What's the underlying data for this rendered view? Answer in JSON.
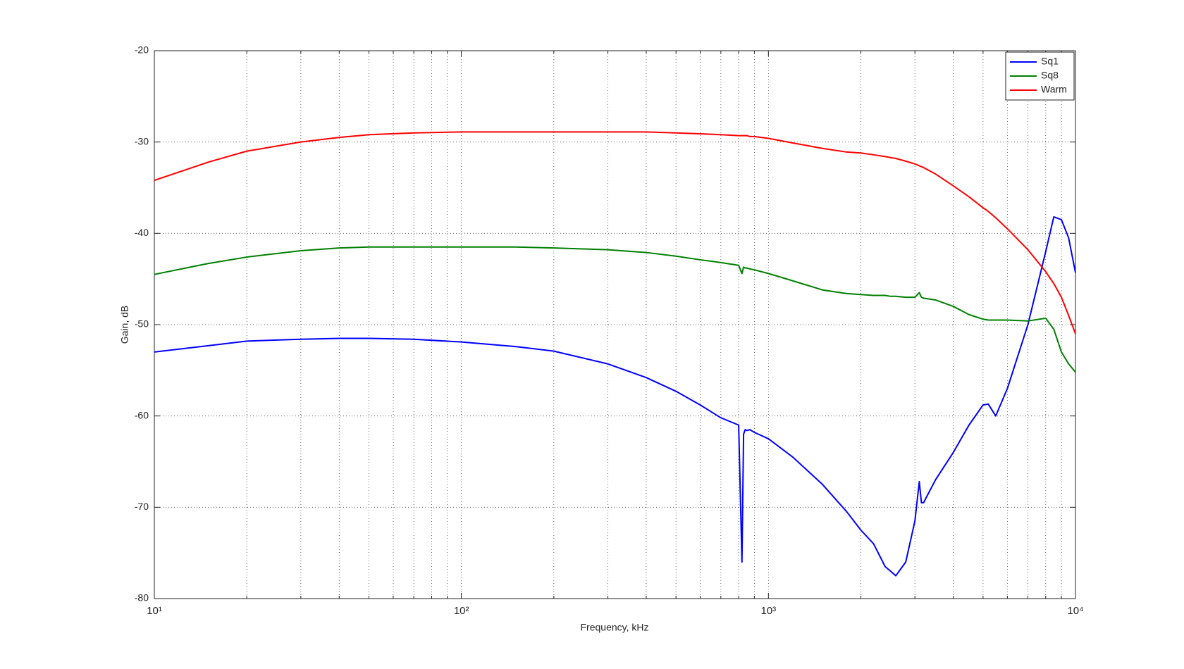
{
  "chart_data": {
    "type": "line",
    "x_label": "Frequency, kHz",
    "y_label": "Gain, dB",
    "x": [
      10,
      15,
      20,
      30,
      40,
      50,
      70,
      100,
      150,
      200,
      300,
      400,
      500,
      600,
      700,
      800,
      820,
      830,
      840,
      850,
      870,
      900,
      1000,
      1200,
      1500,
      1800,
      2000,
      2200,
      2400,
      2500,
      2600,
      2800,
      3000,
      3100,
      3150,
      3200,
      3500,
      4000,
      4500,
      5000,
      5200,
      5500,
      6000,
      7000,
      8000,
      8500,
      9000,
      9500,
      10000
    ],
    "series": [
      {
        "name": "Sq1",
        "color": "#0000ff",
        "values": [
          -53,
          -52.3,
          -51.8,
          -51.6,
          -51.5,
          -51.5,
          -51.6,
          -51.9,
          -52.4,
          -52.9,
          -54.3,
          -55.8,
          -57.3,
          -58.8,
          -60.2,
          -61,
          -76,
          -62,
          -61.5,
          -61.6,
          -61.5,
          -61.8,
          -62.5,
          -64.5,
          -67.5,
          -70.5,
          -72.5,
          -74,
          -76.5,
          -77,
          -77.5,
          -76,
          -71.5,
          -67.2,
          -69.5,
          -69.5,
          -67,
          -64,
          -61,
          -58.8,
          -58.7,
          -60,
          -57,
          -50,
          -42,
          -38.2,
          -38.5,
          -40.5,
          -44.3
        ]
      },
      {
        "name": "Sq8",
        "color": "#008000",
        "values": [
          -44.5,
          -43.3,
          -42.6,
          -41.9,
          -41.6,
          -41.5,
          -41.5,
          -41.5,
          -41.5,
          -41.6,
          -41.8,
          -42.1,
          -42.5,
          -42.9,
          -43.2,
          -43.5,
          -44.4,
          -43.7,
          -43.8,
          -43.8,
          -43.9,
          -44,
          -44.4,
          -45.2,
          -46.2,
          -46.6,
          -46.7,
          -46.8,
          -46.8,
          -46.9,
          -46.9,
          -47,
          -47,
          -46.5,
          -47,
          -47.1,
          -47.3,
          -48,
          -48.9,
          -49.4,
          -49.5,
          -49.5,
          -49.5,
          -49.6,
          -49.3,
          -50.5,
          -53,
          -54.3,
          -55.2
        ]
      },
      {
        "name": "Warm",
        "color": "#ff0000",
        "values": [
          -34.2,
          -32.2,
          -31,
          -30,
          -29.5,
          -29.2,
          -29,
          -28.9,
          -28.9,
          -28.9,
          -28.9,
          -28.9,
          -29,
          -29.1,
          -29.2,
          -29.3,
          -29.3,
          -29.3,
          -29.3,
          -29.3,
          -29.4,
          -29.4,
          -29.6,
          -30.1,
          -30.7,
          -31.1,
          -31.2,
          -31.4,
          -31.6,
          -31.7,
          -31.8,
          -32.1,
          -32.4,
          -32.6,
          -32.7,
          -32.8,
          -33.5,
          -34.8,
          -36,
          -37.2,
          -37.6,
          -38.3,
          -39.5,
          -41.8,
          -44.2,
          -45.5,
          -47,
          -49,
          -51
        ]
      }
    ],
    "x_log": true,
    "xlim": [
      10,
      10000
    ],
    "xticks": [
      {
        "value": 10,
        "label": "10¹"
      },
      {
        "value": 100,
        "label": "10²"
      },
      {
        "value": 1000,
        "label": "10³"
      },
      {
        "value": 10000,
        "label": "10⁴"
      }
    ],
    "xminorticks": [
      20,
      30,
      40,
      50,
      60,
      70,
      80,
      90,
      200,
      300,
      400,
      500,
      600,
      700,
      800,
      900,
      2000,
      3000,
      4000,
      5000,
      6000,
      7000,
      8000,
      9000
    ],
    "ylim": [
      -80,
      -20
    ],
    "yticks": [
      -80,
      -70,
      -60,
      -50,
      -40,
      -30,
      -20
    ],
    "grid": true,
    "legend": "top-right"
  }
}
